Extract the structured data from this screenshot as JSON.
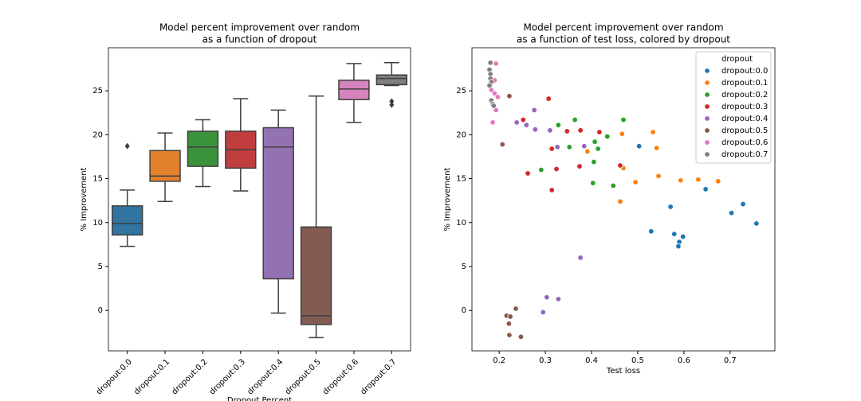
{
  "chart_data": [
    {
      "type": "box",
      "title": [
        "Model percent improvement over random",
        "as a function of dropout"
      ],
      "x_label": "Dropout Percent",
      "y_label": "% Improvement",
      "categories": [
        "dropout:0.0",
        "dropout:0.1",
        "dropout:0.2",
        "dropout:0.3",
        "dropout:0.4",
        "dropout:0.5",
        "dropout:0.6",
        "dropout:0.7"
      ],
      "colors": [
        "#3274a1",
        "#e1812c",
        "#3a923a",
        "#c03d3e",
        "#9372b2",
        "#845b53",
        "#d684bd",
        "#7f7f7f"
      ],
      "boxes": [
        {
          "low": 7.3,
          "q1": 8.6,
          "median": 9.9,
          "q3": 11.9,
          "high": 13.7,
          "outliers": [
            18.7
          ]
        },
        {
          "low": 12.4,
          "q1": 14.7,
          "median": 15.3,
          "q3": 18.2,
          "high": 20.2,
          "outliers": []
        },
        {
          "low": 14.1,
          "q1": 16.4,
          "median": 18.6,
          "q3": 20.4,
          "high": 21.7,
          "outliers": []
        },
        {
          "low": 13.6,
          "q1": 16.2,
          "median": 18.3,
          "q3": 20.4,
          "high": 24.1,
          "outliers": []
        },
        {
          "low": -0.3,
          "q1": 3.6,
          "median": 18.6,
          "q3": 20.8,
          "high": 22.8,
          "outliers": []
        },
        {
          "low": -3.1,
          "q1": -1.6,
          "median": -0.6,
          "q3": 9.5,
          "high": 24.4,
          "outliers": []
        },
        {
          "low": 21.4,
          "q1": 24.0,
          "median": 25.2,
          "q3": 26.2,
          "high": 28.1,
          "outliers": []
        },
        {
          "low": 25.6,
          "q1": 25.7,
          "median": 26.4,
          "q3": 26.8,
          "high": 28.2,
          "outliers": [
            23.8,
            23.4
          ]
        }
      ],
      "ylim": [
        -4.6,
        29.9
      ],
      "yticks": [
        0,
        5,
        10,
        15,
        20,
        25
      ]
    },
    {
      "type": "scatter",
      "title": [
        "Model percent improvement over random",
        "as a function of test loss, colored by dropout"
      ],
      "x_label": "Test loss",
      "y_label": "% Improvement",
      "legend_title": "dropout",
      "legend": "upper right",
      "xlim": [
        0.141,
        0.797
      ],
      "xticks": [
        0.2,
        0.3,
        0.4,
        0.5,
        0.6,
        0.7
      ],
      "ylim": [
        -4.6,
        29.9
      ],
      "yticks": [
        0,
        5,
        10,
        15,
        20,
        25
      ],
      "series": [
        {
          "name": "dropout:0.0",
          "color": "#1f77b4",
          "x": [
            0.503,
            0.571,
            0.647,
            0.703,
            0.728,
            0.757,
            0.529,
            0.579,
            0.59,
            0.598,
            0.588
          ],
          "values": [
            18.7,
            11.8,
            13.8,
            11.1,
            12.1,
            9.9,
            9.0,
            8.7,
            7.8,
            8.4,
            7.3
          ]
        },
        {
          "name": "dropout:0.1",
          "color": "#ff7f0e",
          "x": [
            0.466,
            0.533,
            0.541,
            0.545,
            0.593,
            0.631,
            0.674,
            0.495,
            0.469,
            0.462,
            0.391
          ],
          "values": [
            20.1,
            20.3,
            18.5,
            15.3,
            14.8,
            14.9,
            14.7,
            14.6,
            16.2,
            12.4,
            18.1
          ]
        },
        {
          "name": "dropout:0.2",
          "color": "#2ca02c",
          "x": [
            0.364,
            0.469,
            0.328,
            0.434,
            0.407,
            0.414,
            0.352,
            0.291,
            0.405,
            0.403,
            0.447
          ],
          "values": [
            21.7,
            21.7,
            21.1,
            19.8,
            19.2,
            18.4,
            18.6,
            16.0,
            16.9,
            14.5,
            14.2
          ]
        },
        {
          "name": "dropout:0.3",
          "color": "#d62728",
          "x": [
            0.307,
            0.252,
            0.347,
            0.376,
            0.417,
            0.314,
            0.462,
            0.374,
            0.324,
            0.262,
            0.314
          ],
          "values": [
            24.1,
            21.7,
            20.4,
            20.5,
            20.3,
            18.4,
            16.5,
            16.4,
            16.1,
            15.6,
            13.7
          ]
        },
        {
          "name": "dropout:0.4",
          "color": "#9467bd",
          "x": [
            0.276,
            0.238,
            0.259,
            0.31,
            0.278,
            0.326,
            0.384,
            0.376,
            0.303,
            0.328,
            0.295
          ],
          "values": [
            22.8,
            21.4,
            21.1,
            20.5,
            20.6,
            18.6,
            18.7,
            6.0,
            1.5,
            1.3,
            -0.2
          ]
        },
        {
          "name": "dropout:0.5",
          "color": "#8c564b",
          "x": [
            0.222,
            0.207,
            0.236,
            0.216,
            0.224,
            0.221,
            0.222,
            0.247
          ],
          "values": [
            24.4,
            18.9,
            0.2,
            -0.6,
            -0.7,
            -1.5,
            -2.8,
            -3.0
          ]
        },
        {
          "name": "dropout:0.6",
          "color": "#e377c2",
          "x": [
            0.193,
            0.184,
            0.19,
            0.183,
            0.19,
            0.197,
            0.193,
            0.186
          ],
          "values": [
            28.1,
            26.3,
            26.2,
            25.1,
            24.7,
            24.3,
            22.8,
            21.4
          ]
        },
        {
          "name": "dropout:0.7",
          "color": "#7f7f7f",
          "x": [
            0.181,
            0.179,
            0.181,
            0.181,
            0.183,
            0.179,
            0.183,
            0.186,
            0.188
          ],
          "values": [
            28.2,
            27.4,
            26.9,
            26.4,
            26.0,
            25.6,
            23.9,
            23.5,
            23.3
          ]
        }
      ]
    }
  ]
}
